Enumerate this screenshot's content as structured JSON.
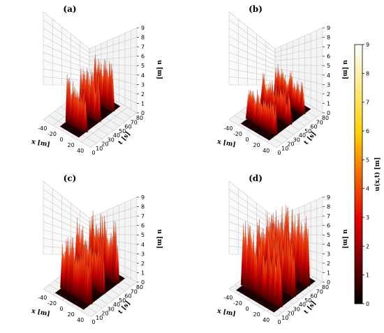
{
  "figure": {
    "colorbar": {
      "label": "u(x,t) [m]",
      "ticks": [
        "0",
        "1",
        "2",
        "3",
        "4",
        "5",
        "6",
        "7",
        "8",
        "9"
      ],
      "range": [
        0,
        9
      ],
      "colormap": "hot"
    }
  },
  "chart_data": [
    {
      "type": "surface3d",
      "title": "(a)",
      "xlabel": "x [m]",
      "ylabel": "t [s]",
      "zlabel": "u [m]",
      "xticks": [
        "-40",
        "-20",
        "0",
        "20",
        "40"
      ],
      "yticks": [
        "0",
        "10",
        "20",
        "30",
        "40",
        "50",
        "60",
        "70",
        "80"
      ],
      "zticks": [
        "0",
        "1",
        "2",
        "3",
        "4",
        "5",
        "6",
        "7",
        "8",
        "9"
      ],
      "xlim": [
        -50,
        50
      ],
      "ylim": [
        0,
        80
      ],
      "zlim": [
        0,
        9
      ],
      "description_values": {
        "x_range": [
          -20,
          20
        ],
        "peak_u": 6.0,
        "n_peaks": 26
      }
    },
    {
      "type": "surface3d",
      "title": "(b)",
      "xlabel": "x [m]",
      "ylabel": "t [s]",
      "zlabel": "u [m]",
      "xticks": [
        "-40",
        "-20",
        "0",
        "20",
        "40"
      ],
      "yticks": [
        "0",
        "10",
        "20",
        "30",
        "40",
        "50",
        "60",
        "70",
        "80"
      ],
      "zticks": [
        "0",
        "1",
        "2",
        "3",
        "4",
        "5",
        "6",
        "7",
        "8",
        "9"
      ],
      "xlim": [
        -50,
        50
      ],
      "ylim": [
        0,
        80
      ],
      "zlim": [
        0,
        9
      ],
      "description_values": {
        "x_range": [
          -30,
          30
        ],
        "peak_u": 4.5,
        "n_peaks": 28
      }
    },
    {
      "type": "surface3d",
      "title": "(c)",
      "xlabel": "x [m]",
      "ylabel": "t [s]",
      "zlabel": "u [m]",
      "xticks": [
        "-40",
        "-20",
        "0",
        "20",
        "40"
      ],
      "yticks": [
        "0",
        "10",
        "20",
        "30",
        "40",
        "50",
        "60",
        "70",
        "80"
      ],
      "zticks": [
        "0",
        "1",
        "2",
        "3",
        "4",
        "5",
        "6",
        "7",
        "8",
        "9"
      ],
      "xlim": [
        -50,
        50
      ],
      "ylim": [
        0,
        80
      ],
      "zlim": [
        0,
        9
      ],
      "description_values": {
        "x_range": [
          -30,
          30
        ],
        "peak_u": 7.5,
        "n_peaks": 30
      }
    },
    {
      "type": "surface3d",
      "title": "(d)",
      "xlabel": "x [m]",
      "ylabel": "t [s]",
      "zlabel": "u [m]",
      "xticks": [
        "-40",
        "-20",
        "0",
        "20",
        "40"
      ],
      "yticks": [
        "0",
        "10",
        "20",
        "30",
        "40",
        "50",
        "60",
        "70",
        "80"
      ],
      "zticks": [
        "0",
        "1",
        "2",
        "3",
        "4",
        "5",
        "6",
        "7",
        "8",
        "9"
      ],
      "xlim": [
        -50,
        50
      ],
      "ylim": [
        0,
        80
      ],
      "zlim": [
        0,
        9
      ],
      "description_values": {
        "x_range": [
          -40,
          40
        ],
        "peak_u": 8.5,
        "n_peaks": 38
      }
    }
  ]
}
